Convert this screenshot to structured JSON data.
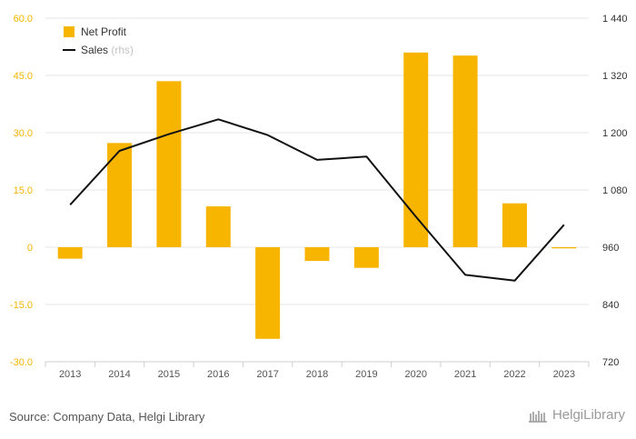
{
  "chart_data": {
    "type": "bar",
    "categories": [
      "2013",
      "2014",
      "2015",
      "2016",
      "2017",
      "2018",
      "2019",
      "2020",
      "2021",
      "2022",
      "2023"
    ],
    "series": [
      {
        "name": "Net Profit",
        "type": "bar",
        "axis": "left",
        "color": "#F7B500",
        "values": [
          -3.0,
          27.3,
          43.5,
          10.7,
          -24.0,
          -3.6,
          -5.4,
          51.0,
          50.2,
          11.5,
          -0.3
        ]
      },
      {
        "name": "Sales",
        "type": "line",
        "axis": "right",
        "color": "#111111",
        "values": [
          1049,
          1162,
          1197,
          1228,
          1195,
          1143,
          1150,
          1024,
          902,
          890,
          1007
        ]
      }
    ],
    "legend": [
      {
        "label": "Net Profit",
        "suffix": ""
      },
      {
        "label": "Sales",
        "suffix": "(rhs)"
      }
    ],
    "legend_position": "top-left",
    "ylim_left": [
      -30,
      60
    ],
    "yticks_left": [
      -30,
      -15,
      0,
      15,
      30,
      45,
      60
    ],
    "yticklabels_left": [
      "-30.0",
      "-15.0",
      "0",
      "15.0",
      "30.0",
      "45.0",
      "60.0"
    ],
    "ylim_right": [
      720,
      1440
    ],
    "yticks_right": [
      720,
      840,
      960,
      1080,
      1200,
      1320,
      1440
    ],
    "yticklabels_right": [
      "720",
      "840",
      "960",
      "1 080",
      "1 200",
      "1 320",
      "1 440"
    ],
    "left_axis_color": "#F7B500",
    "right_axis_color": "#333333",
    "grid": true
  },
  "footer": {
    "source": "Source: Company Data, Helgi Library",
    "logo_text": "HelgiLibrary"
  }
}
